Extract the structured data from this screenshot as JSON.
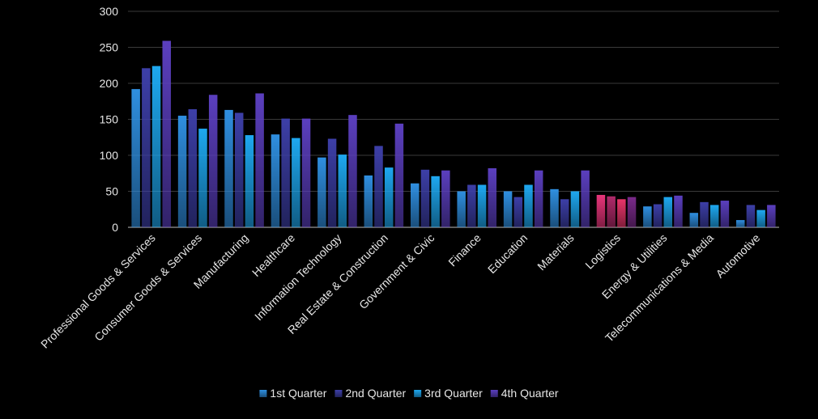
{
  "chart_data": {
    "type": "bar",
    "title": "",
    "xlabel": "",
    "ylabel": "",
    "ylim": [
      0,
      300
    ],
    "yticks": [
      0,
      50,
      100,
      150,
      200,
      250,
      300
    ],
    "grid": true,
    "legend_position": "bottom",
    "categories": [
      "Professional Goods & Services",
      "Consumer Goods & Services",
      "Manufacturing",
      "Healthcare",
      "Information Technology",
      "Real Estate & Construction",
      "Government & Civic",
      "Finance",
      "Education",
      "Materials",
      "Logistics",
      "Energy & Utilities",
      "Telecommunications & Media",
      "Automotive"
    ],
    "series": [
      {
        "name": "1st Quarter",
        "values": [
          192,
          155,
          163,
          129,
          97,
          72,
          61,
          50,
          50,
          53,
          45,
          29,
          20,
          10
        ]
      },
      {
        "name": "2nd Quarter",
        "values": [
          221,
          164,
          159,
          151,
          123,
          113,
          80,
          59,
          42,
          39,
          43,
          32,
          35,
          31
        ]
      },
      {
        "name": "3rd Quarter",
        "values": [
          224,
          137,
          128,
          124,
          101,
          83,
          71,
          59,
          59,
          50,
          39,
          42,
          31,
          24
        ]
      },
      {
        "name": "4th Quarter",
        "values": [
          259,
          184,
          186,
          151,
          156,
          144,
          79,
          82,
          79,
          79,
          42,
          44,
          37,
          31
        ]
      }
    ],
    "series_colors": [
      "#2f8fe0",
      "#3d3fa8",
      "#1ea8f0",
      "#5b3fbf"
    ],
    "highlight_category": "Logistics",
    "highlight_colors": [
      "#e8357a",
      "#b02a6a",
      "#e8356a",
      "#7a2a8a"
    ]
  }
}
